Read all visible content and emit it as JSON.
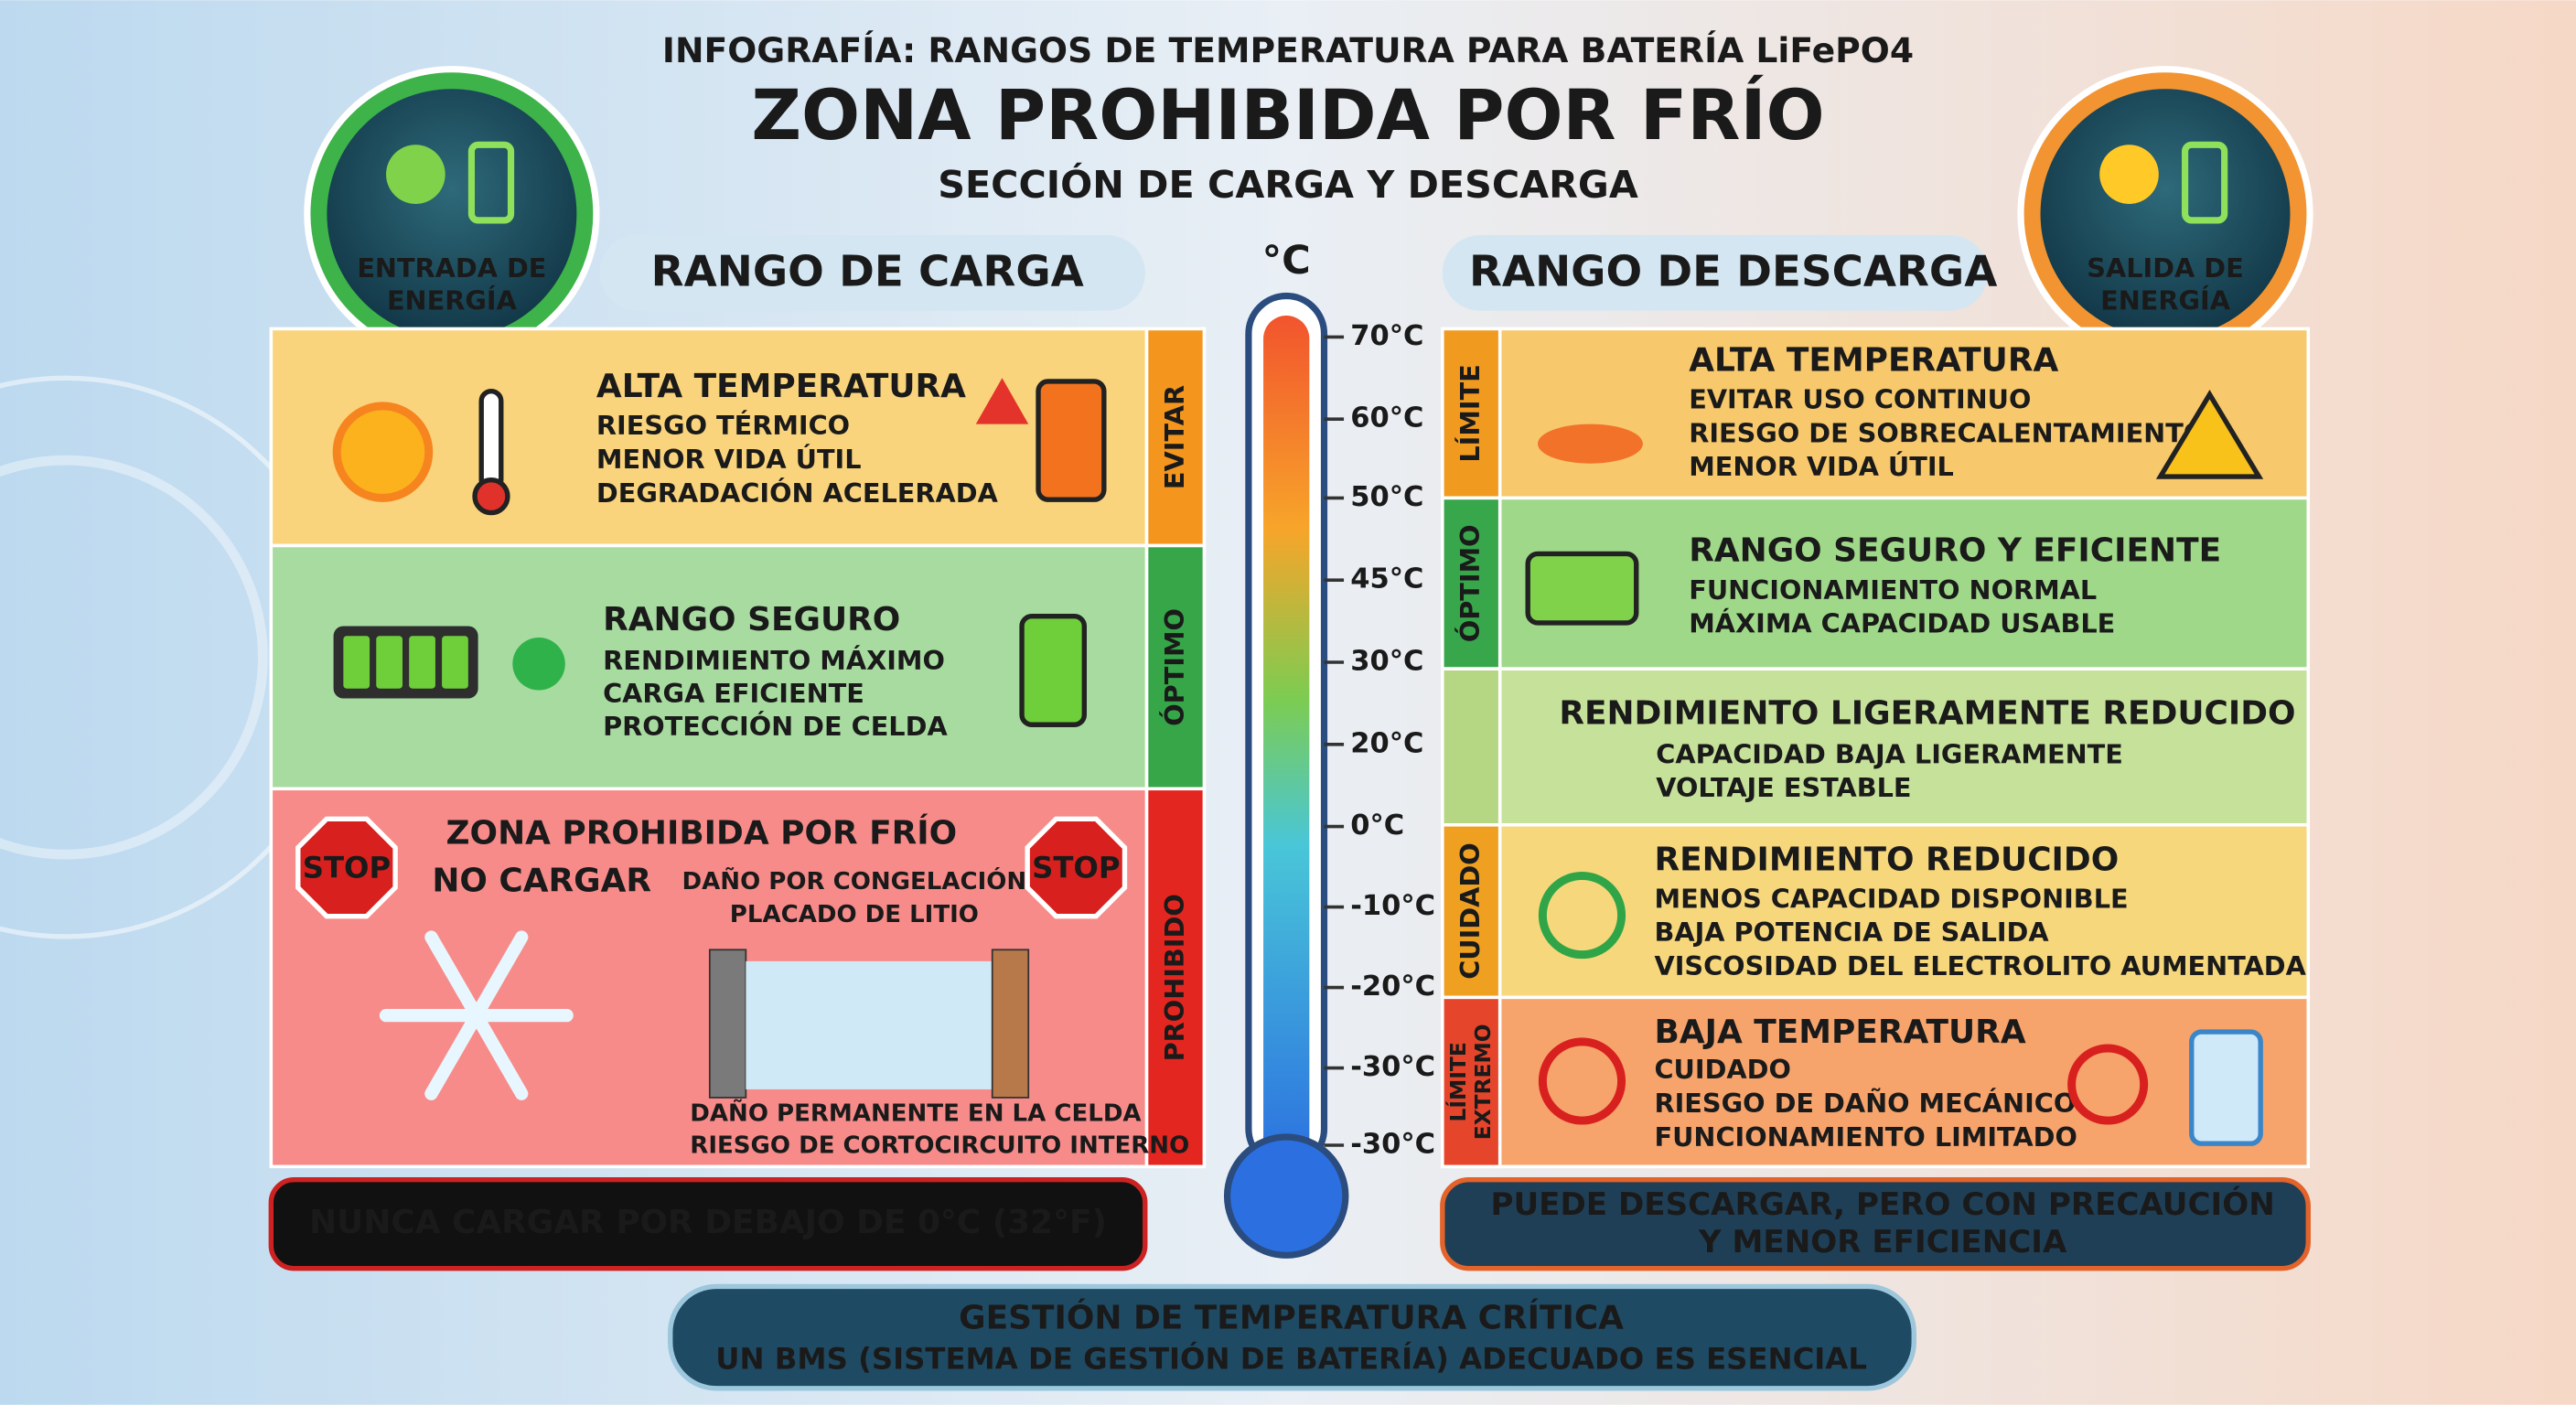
{
  "header": {
    "kicker": "INFOGRAFÍA: RANGOS DE TEMPERATURA PARA BATERÍA LiFePO4",
    "title": "ZONA PROHIBIDA POR FRÍO",
    "subtitle": "SECCIÓN DE CARGA Y DESCARGA"
  },
  "badges": [
    {
      "lines": [
        "ENTRADA DE",
        "ENERGÍA"
      ]
    },
    {
      "lines": [
        "SALIDA DE",
        "ENERGÍA"
      ]
    }
  ],
  "charge": {
    "heading": "RANGO DE CARGA",
    "rows": [
      {
        "tag": [
          "EVITAR"
        ],
        "title": "ALTA TEMPERATURA",
        "lines": [
          "RIESGO TÉRMICO",
          "MENOR VIDA ÚTIL",
          "DEGRADACIÓN ACELERADA"
        ]
      },
      {
        "tag": [
          "ÓPTIMO"
        ],
        "title": "RANGO SEGURO",
        "lines": [
          "RENDIMIENTO MÁXIMO",
          "CARGA EFICIENTE",
          "PROTECCIÓN DE CELDA"
        ]
      },
      {
        "tag": [
          "PROHIBIDO"
        ],
        "title": "ZONA PROHIBIDA POR FRÍO",
        "lines": [
          "NO CARGAR"
        ],
        "icons": [
          "STOP",
          "STOP"
        ],
        "notes": [
          "DAÑO POR CONGELACIÓN",
          "PLACADO DE LITIO"
        ],
        "effects": [
          "DAÑO PERMANENTE EN LA CELDA",
          "RIESGO DE CORTOCIRCUITO INTERNO"
        ]
      }
    ],
    "footer": "NUNCA CARGAR POR DEBAJO DE 0°C (32°F)"
  },
  "thermometer": {
    "unit": "°C",
    "labels": [
      "70°C",
      "60°C",
      "50°C",
      "45°C",
      "30°C",
      "20°C",
      "0°C",
      "-10°C",
      "-20°C",
      "-30°C",
      "-30°C"
    ]
  },
  "discharge": {
    "heading": "RANGO DE DESCARGA",
    "rows": [
      {
        "tag": [
          "LÍMITE"
        ],
        "title": "ALTA TEMPERATURA",
        "lines": [
          "EVITAR USO CONTINUO",
          "RIESGO DE SOBRECALENTAMIENTO",
          "MENOR VIDA ÚTIL"
        ]
      },
      {
        "tag": [
          "ÓPTIMO"
        ],
        "title": "RANGO SEGURO Y EFICIENTE",
        "lines": [
          "FUNCIONAMIENTO NORMAL",
          "MÁXIMA CAPACIDAD USABLE"
        ]
      },
      {
        "title": "RENDIMIENTO LIGERAMENTE REDUCIDO",
        "lines": [
          "CAPACIDAD BAJA LIGERAMENTE",
          "VOLTAJE ESTABLE"
        ]
      },
      {
        "tag": [
          "CUIDADO"
        ],
        "title": "RENDIMIENTO REDUCIDO",
        "lines": [
          "MENOS CAPACIDAD DISPONIBLE",
          "BAJA POTENCIA DE SALIDA",
          "VISCOSIDAD DEL ELECTROLITO AUMENTADA"
        ]
      },
      {
        "tag": [
          "LÍMITE",
          "EXTREMO"
        ],
        "title": "BAJA TEMPERATURA",
        "lines": [
          "CUIDADO",
          "RIESGO DE DAÑO MECÁNICO",
          "FUNCIONAMIENTO LIMITADO"
        ]
      }
    ],
    "footer": [
      "PUEDE DESCARGAR, PERO CON PRECAUCIÓN",
      "Y MENOR EFICIENCIA"
    ]
  },
  "footer": {
    "title": "GESTIÓN DE TEMPERATURA CRÍTICA",
    "subtitle": "UN BMS (SISTEMA DE GESTIÓN DE BATERÍA) ADECUADO ES ESENCIAL"
  }
}
